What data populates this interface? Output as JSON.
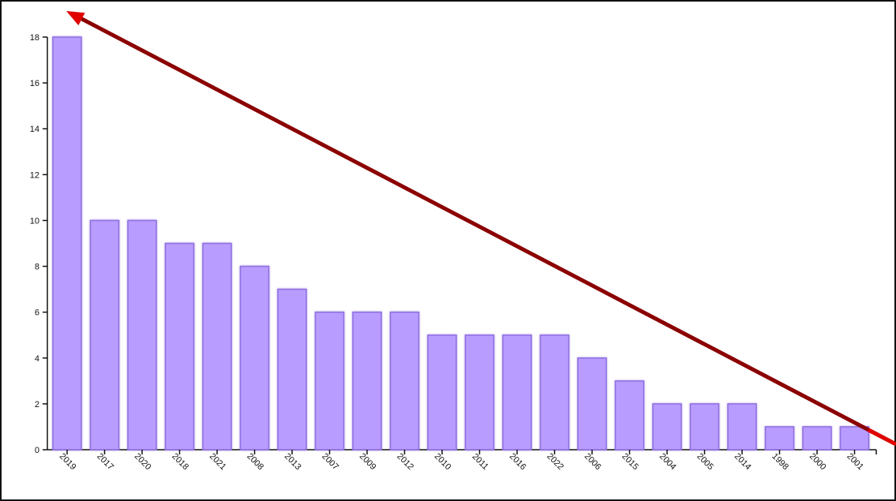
{
  "chart_data": {
    "type": "bar",
    "title": "",
    "xlabel": "",
    "ylabel": "",
    "categories": [
      "2019",
      "2017",
      "2020",
      "2018",
      "2021",
      "2008",
      "2013",
      "2007",
      "2009",
      "2012",
      "2010",
      "2011",
      "2016",
      "2022",
      "2006",
      "2015",
      "2004",
      "2005",
      "2014",
      "1998",
      "2000",
      "2001"
    ],
    "values": [
      18,
      10,
      10,
      9,
      9,
      8,
      7,
      6,
      6,
      6,
      5,
      5,
      5,
      5,
      4,
      3,
      2,
      2,
      2,
      1,
      1,
      1
    ],
    "ylim": [
      0,
      18
    ],
    "yticks": [
      0,
      2,
      4,
      6,
      8,
      10,
      12,
      14,
      16,
      18
    ],
    "grid": false,
    "bar_color": "#b89cff",
    "bar_border_color": "#8f6fe0",
    "annotation": {
      "type": "trend-arrow",
      "direction": "decreasing, drawn from lower-right up to upper-left",
      "color": "#8b0000",
      "arrowhead_color": "#e00000"
    }
  }
}
